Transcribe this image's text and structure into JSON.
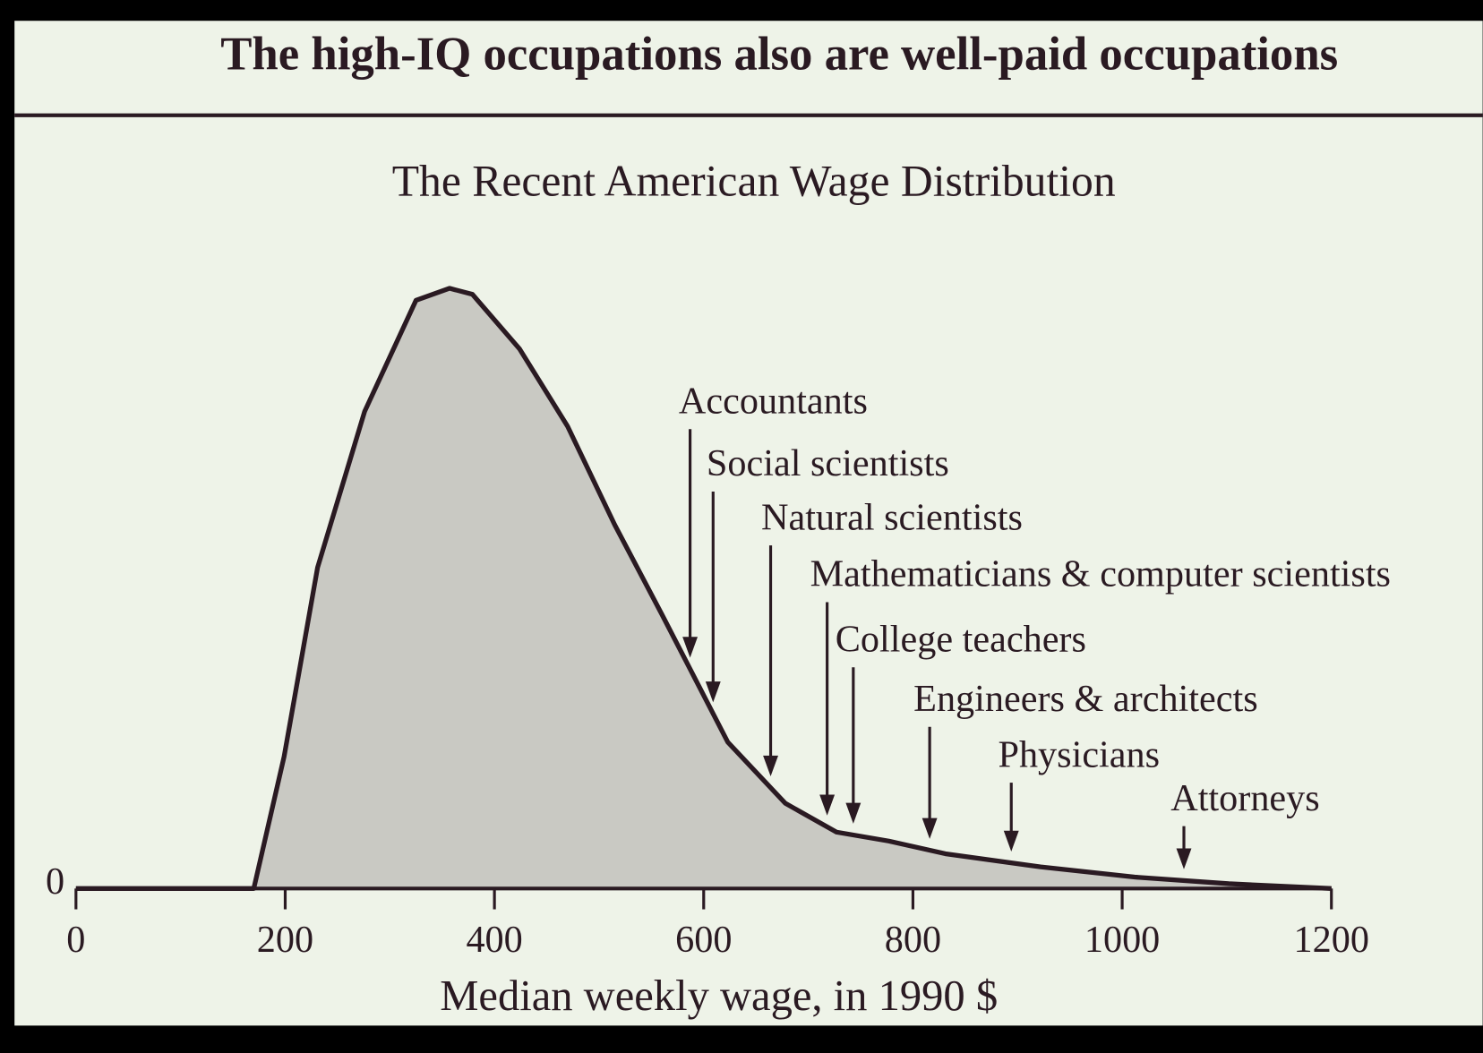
{
  "chart_data": {
    "type": "area",
    "title": "The high-IQ occupations also are well-paid occupations",
    "subtitle": "The Recent American Wage Distribution",
    "x_label": "Median weekly wage, in 1990 $",
    "x": [
      0,
      170,
      199,
      231,
      276,
      325,
      357,
      379,
      424,
      470,
      515,
      560,
      623,
      678,
      727,
      777,
      831,
      922,
      1012,
      1102,
      1200
    ],
    "values": [
      0,
      0,
      22,
      53.5,
      79.5,
      98,
      100,
      99,
      89.9,
      77,
      60.6,
      45.7,
      24.4,
      14.2,
      9.4,
      7.9,
      5.8,
      3.6,
      1.9,
      0.8,
      0
    ],
    "color": "#c9c9c3",
    "line_color": "#2a1a22",
    "xlim": [
      0,
      1200
    ],
    "xticks": [
      0,
      200,
      400,
      600,
      800,
      1000,
      1200
    ],
    "ylim": [
      0,
      100
    ],
    "yticks": [
      0
    ],
    "annotations": [
      {
        "label": "Accountants",
        "x": 587
      },
      {
        "label": "Social scientists",
        "x": 609
      },
      {
        "label": "Natural scientists",
        "x": 664
      },
      {
        "label": "Mathematicians & computer scientists",
        "x": 718
      },
      {
        "label": "College teachers",
        "x": 743
      },
      {
        "label": "Engineers & architects",
        "x": 816
      },
      {
        "label": "Physicians",
        "x": 894
      },
      {
        "label": "Attorneys",
        "x": 1059
      }
    ]
  }
}
